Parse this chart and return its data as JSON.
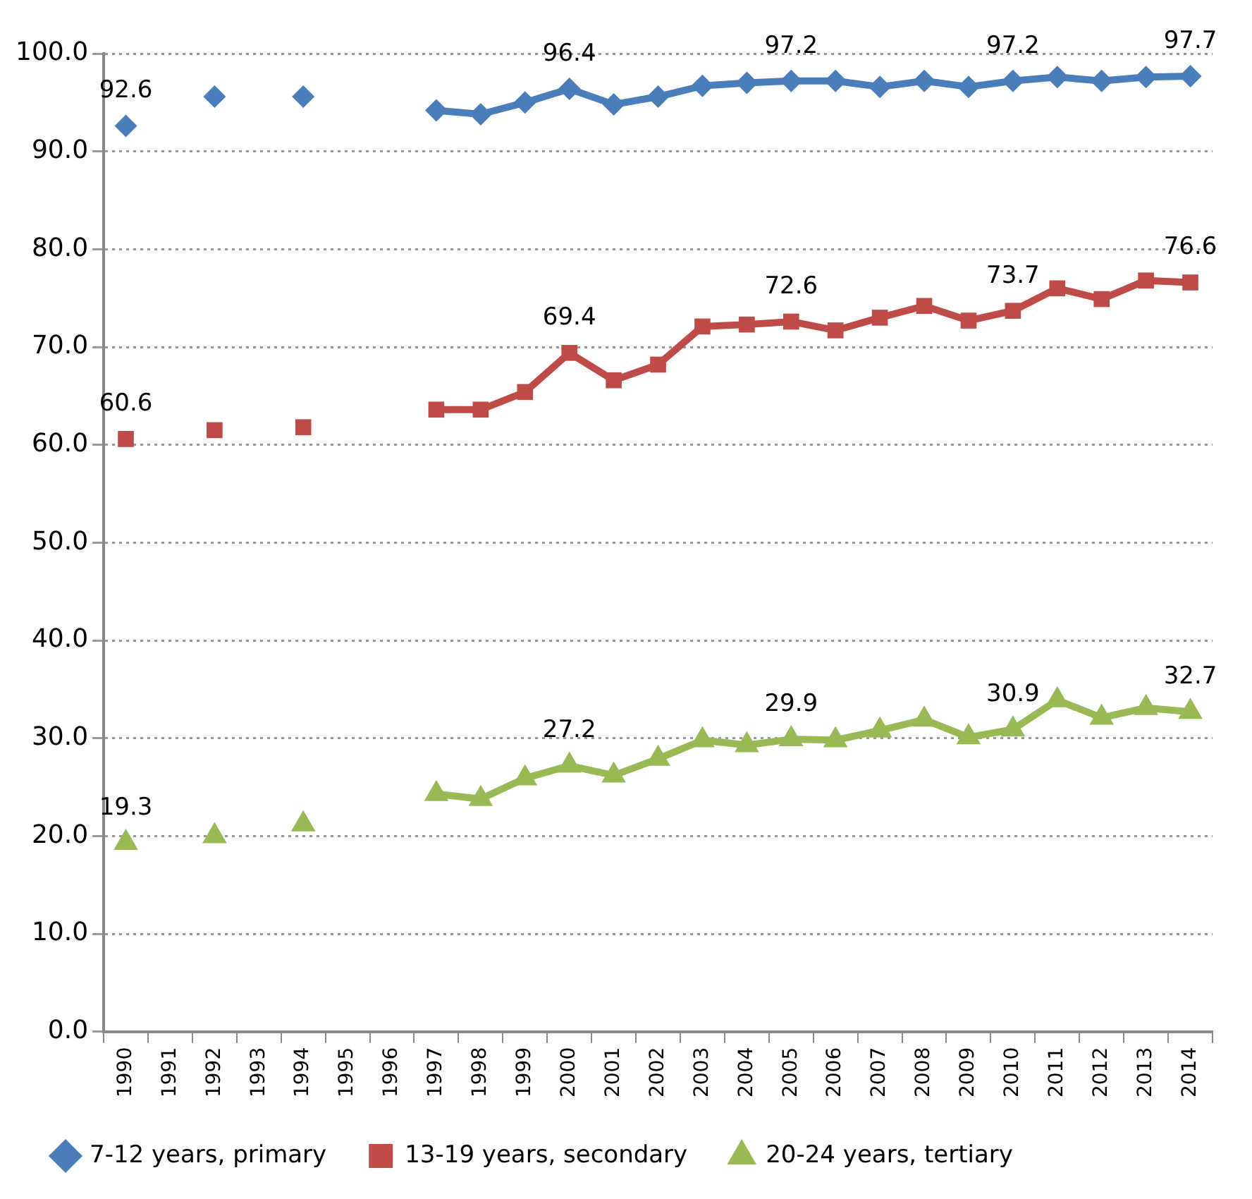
{
  "chart_data": {
    "type": "line",
    "categories": [
      "1990",
      "1991",
      "1992",
      "1993",
      "1994",
      "1995",
      "1996",
      "1997",
      "1998",
      "1999",
      "2000",
      "2001",
      "2002",
      "2003",
      "2004",
      "2005",
      "2006",
      "2007",
      "2008",
      "2009",
      "2010",
      "2011",
      "2012",
      "2013",
      "2014"
    ],
    "series": [
      {
        "name": "7-12 years, primary",
        "color": "#4a7ebb",
        "marker": "diamond",
        "values": [
          92.6,
          null,
          95.6,
          null,
          95.6,
          null,
          null,
          94.2,
          93.8,
          95.0,
          96.4,
          94.8,
          95.6,
          96.7,
          97.0,
          97.2,
          97.2,
          96.6,
          97.2,
          96.6,
          97.2,
          97.6,
          97.2,
          97.6,
          97.7
        ],
        "value_labels": [
          "92.6",
          null,
          null,
          null,
          null,
          null,
          null,
          null,
          null,
          null,
          "96.4",
          null,
          null,
          null,
          null,
          "97.2",
          null,
          null,
          null,
          null,
          "97.2",
          null,
          null,
          null,
          "97.7"
        ]
      },
      {
        "name": "13-19 years, secondary",
        "color": "#be4b48",
        "marker": "square",
        "values": [
          60.6,
          null,
          61.5,
          null,
          61.8,
          null,
          null,
          63.6,
          63.6,
          65.4,
          69.4,
          66.6,
          68.2,
          72.1,
          72.3,
          72.6,
          71.7,
          73.0,
          74.2,
          72.7,
          73.7,
          76.0,
          74.9,
          76.8,
          76.6
        ],
        "value_labels": [
          "60.6",
          null,
          null,
          null,
          null,
          null,
          null,
          null,
          null,
          null,
          "69.4",
          null,
          null,
          null,
          null,
          "72.6",
          null,
          null,
          null,
          null,
          "73.7",
          null,
          null,
          null,
          "76.6"
        ]
      },
      {
        "name": "20-24 years, tertiary",
        "color": "#98b954",
        "marker": "triangle",
        "values": [
          19.3,
          null,
          20.0,
          null,
          21.2,
          null,
          null,
          24.3,
          23.8,
          25.9,
          27.2,
          26.2,
          27.9,
          29.8,
          29.3,
          29.9,
          29.8,
          30.8,
          31.9,
          30.1,
          30.9,
          33.9,
          32.1,
          33.1,
          32.7
        ],
        "value_labels": [
          "19.3",
          null,
          null,
          null,
          null,
          null,
          null,
          null,
          null,
          null,
          "27.2",
          null,
          null,
          null,
          null,
          "29.9",
          null,
          null,
          null,
          null,
          "30.9",
          null,
          null,
          null,
          "32.7"
        ]
      }
    ],
    "ylim": [
      0,
      100
    ],
    "yticks": [
      {
        "value": 0,
        "label": "0.0"
      },
      {
        "value": 10,
        "label": "10.0"
      },
      {
        "value": 20,
        "label": "20.0"
      },
      {
        "value": 30,
        "label": "30.0"
      },
      {
        "value": 40,
        "label": "40.0"
      },
      {
        "value": 50,
        "label": "50.0"
      },
      {
        "value": 60,
        "label": "60.0"
      },
      {
        "value": 70,
        "label": "70.0"
      },
      {
        "value": 80,
        "label": "80.0"
      },
      {
        "value": 90,
        "label": "90.0"
      },
      {
        "value": 100,
        "label": "100.0"
      }
    ],
    "grid": "y",
    "legend": "bottom",
    "line_style": "solid"
  }
}
